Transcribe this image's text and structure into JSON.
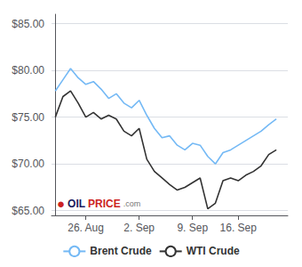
{
  "chart_data": {
    "type": "line",
    "x": [
      0,
      1,
      2,
      3,
      4,
      5,
      6,
      7,
      8,
      9,
      10,
      11,
      12,
      13,
      14,
      15,
      16,
      17,
      18,
      19,
      20,
      21,
      22,
      23,
      24,
      25,
      26,
      27,
      28,
      29
    ],
    "series": [
      {
        "name": "Brent Crude",
        "color": "#74b9f5",
        "values": [
          77.8,
          79.0,
          80.2,
          79.2,
          78.5,
          78.8,
          78.0,
          77.0,
          77.5,
          76.5,
          76.0,
          76.8,
          75.2,
          73.8,
          72.8,
          73.0,
          72.0,
          71.5,
          72.2,
          72.0,
          70.8,
          70.0,
          71.2,
          71.5,
          72.0,
          72.5,
          73.0,
          73.5,
          74.2,
          74.8
        ]
      },
      {
        "name": "WTI Crude",
        "color": "#333333",
        "values": [
          75.0,
          77.2,
          77.8,
          76.5,
          75.0,
          75.5,
          74.8,
          75.2,
          74.8,
          73.5,
          73.0,
          73.8,
          70.5,
          69.2,
          68.5,
          67.8,
          67.2,
          67.5,
          68.0,
          68.5,
          65.2,
          65.8,
          68.2,
          68.5,
          68.2,
          68.8,
          69.2,
          69.8,
          71.0,
          71.5
        ]
      }
    ],
    "xlim": [
      -0.5,
      30.5
    ],
    "xticks": [
      {
        "value": 4,
        "label": "26. Aug"
      },
      {
        "value": 11,
        "label": "2. Sep"
      },
      {
        "value": 18,
        "label": "9. Sep"
      },
      {
        "value": 24,
        "label": "16. Sep"
      }
    ],
    "ylim": [
      64.5,
      86.0
    ],
    "yticks": [
      {
        "value": 65.0,
        "label": "$65.00"
      },
      {
        "value": 70.0,
        "label": "$70.00"
      },
      {
        "value": 75.0,
        "label": "$75.00"
      },
      {
        "value": 80.0,
        "label": "$80.00"
      },
      {
        "value": 85.0,
        "label": "$85.00"
      }
    ],
    "grid": true,
    "legend": "bottom",
    "annotations": [
      {
        "text": "●",
        "color": "#cc2222"
      },
      {
        "text": "OIL",
        "color": "#1a1a5e"
      },
      {
        "text": "PRICE",
        "color": "#cc2222"
      },
      {
        "text": ".com",
        "color": "#777777"
      }
    ]
  }
}
